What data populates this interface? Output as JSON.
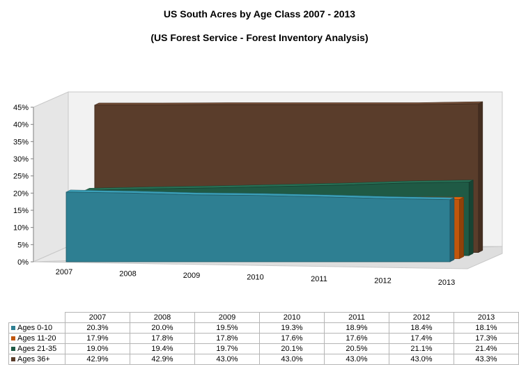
{
  "colors": {
    "ages_0_10": "#2e7f92",
    "ages_11_20": "#c0560c",
    "ages_21_35": "#1f5a45",
    "ages_36_plus": "#5a3d2b"
  },
  "chart_data": {
    "type": "area",
    "title": "US South Acres by Age Class 2007 - 2013",
    "subtitle": "(US Forest Service - Forest Inventory Analysis)",
    "categories": [
      "2007",
      "2008",
      "2009",
      "2010",
      "2011",
      "2012",
      "2013"
    ],
    "yticks": [
      "0%",
      "5%",
      "10%",
      "15%",
      "20%",
      "25%",
      "30%",
      "35%",
      "40%",
      "45%"
    ],
    "ylim": [
      0,
      45
    ],
    "series": [
      {
        "name": "Ages 0-10",
        "color": "#2e7f92",
        "values": [
          20.3,
          20.0,
          19.5,
          19.3,
          18.9,
          18.4,
          18.1
        ],
        "labels": [
          "20.3%",
          "20.0%",
          "19.5%",
          "19.3%",
          "18.9%",
          "18.4%",
          "18.1%"
        ]
      },
      {
        "name": "Ages 11-20",
        "color": "#c0560c",
        "values": [
          17.9,
          17.8,
          17.8,
          17.6,
          17.6,
          17.4,
          17.3
        ],
        "labels": [
          "17.9%",
          "17.8%",
          "17.8%",
          "17.6%",
          "17.6%",
          "17.4%",
          "17.3%"
        ]
      },
      {
        "name": "Ages 21-35",
        "color": "#1f5a45",
        "values": [
          19.0,
          19.4,
          19.7,
          20.1,
          20.5,
          21.1,
          21.4
        ],
        "labels": [
          "19.0%",
          "19.4%",
          "19.7%",
          "20.1%",
          "20.5%",
          "21.1%",
          "21.4%"
        ]
      },
      {
        "name": "Ages 36+",
        "color": "#5a3d2b",
        "values": [
          42.9,
          42.9,
          43.0,
          43.0,
          43.0,
          43.0,
          43.3
        ],
        "labels": [
          "42.9%",
          "42.9%",
          "43.0%",
          "43.0%",
          "43.0%",
          "43.0%",
          "43.3%"
        ]
      }
    ],
    "grid": false,
    "legend": "data table below chart"
  }
}
